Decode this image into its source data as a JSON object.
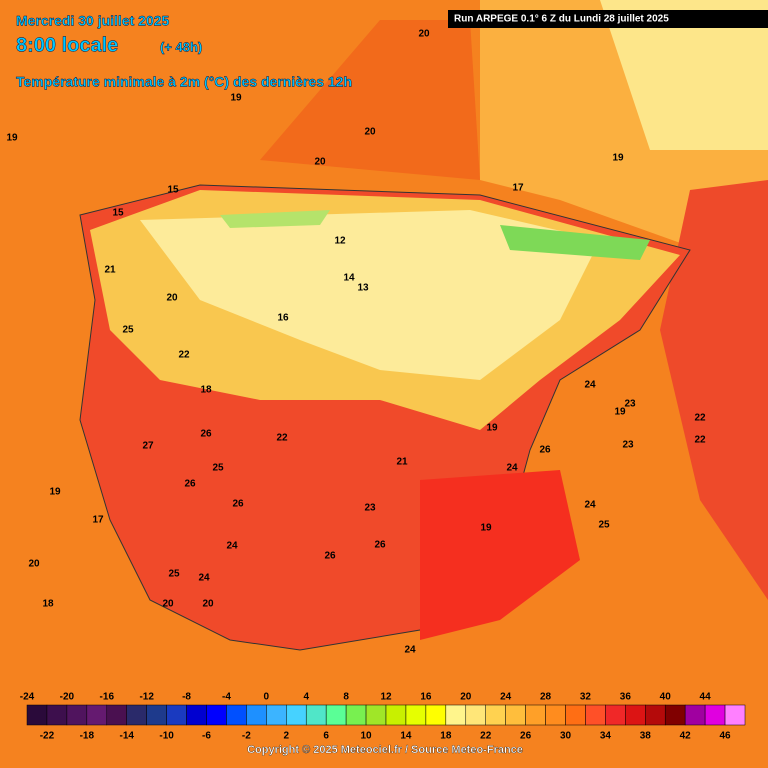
{
  "header": {
    "date": "Mercredi 30 juillet 2025",
    "time": "8:00 locale",
    "offset": "(+ 48h)",
    "subtitle": "Température minimale à 2m (°C) des dernières 12h",
    "run": "Run ARPEGE 0.1° 6 Z du Lundi 28 juillet 2025"
  },
  "scale": {
    "top_labels": [
      -24,
      -20,
      -16,
      -12,
      -8,
      -4,
      0,
      4,
      8,
      12,
      16,
      20,
      24,
      28,
      32,
      36,
      40,
      44
    ],
    "bottom_labels": [
      -22,
      -18,
      -14,
      -10,
      -6,
      -2,
      2,
      6,
      10,
      14,
      18,
      22,
      26,
      30,
      34,
      38,
      42,
      46
    ],
    "colors": [
      "#2a0a3a",
      "#3d0f4d",
      "#50145e",
      "#651a70",
      "#4a1050",
      "#2a2a6a",
      "#1e3a8c",
      "#1a3ac0",
      "#0000d0",
      "#0000ff",
      "#0050ff",
      "#1e90ff",
      "#3cb4ff",
      "#46d2ff",
      "#50e6c8",
      "#5aff96",
      "#78f050",
      "#a0e628",
      "#c8f000",
      "#e6ff00",
      "#ffff00",
      "#fff58c",
      "#ffe678",
      "#ffd250",
      "#ffbe3c",
      "#ffa028",
      "#ff8c1e",
      "#ff6e14",
      "#ff5028",
      "#f02828",
      "#dc1414",
      "#b40a0a",
      "#800000",
      "#a000a0",
      "#e000e0",
      "#ff80ff"
    ]
  },
  "map_labels": [
    19,
    20,
    20,
    19,
    19,
    20,
    15,
    16,
    14,
    13,
    12,
    15,
    17,
    19,
    19,
    21,
    20,
    25,
    22,
    18,
    26,
    27,
    26,
    25,
    26,
    22,
    21,
    23,
    24,
    26,
    26,
    25,
    24,
    24,
    24,
    23,
    20,
    18,
    17,
    19,
    20,
    24,
    25,
    23,
    22,
    26,
    22,
    24,
    19,
    20
  ],
  "footer": {
    "copyright": "Copyright © 2025 Meteociel.fr / Source Meteo-France"
  }
}
